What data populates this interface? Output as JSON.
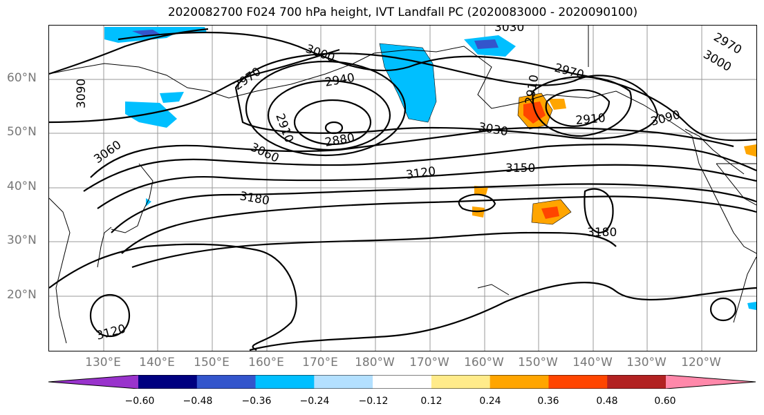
{
  "title": "2020082700 F024 700 hPa height, IVT Landfall PC (2020083000 - 2020090100)",
  "lat_labels": [
    "60°N",
    "50°N",
    "40°N",
    "30°N",
    "20°N"
  ],
  "lon_labels": [
    "130°E",
    "140°E",
    "150°E",
    "160°E",
    "170°E",
    "180°W",
    "170°W",
    "160°W",
    "150°W",
    "140°W",
    "130°W",
    "120°W"
  ],
  "contour_labels": [
    {
      "text": "3030"
    },
    {
      "text": "3000"
    },
    {
      "text": "2970"
    },
    {
      "text": "2940"
    },
    {
      "text": "2910"
    },
    {
      "text": "2880"
    },
    {
      "text": "3060"
    },
    {
      "text": "3090"
    },
    {
      "text": "3120"
    },
    {
      "text": "3150"
    },
    {
      "text": "3180"
    },
    {
      "text": "3180"
    },
    {
      "text": "3030"
    },
    {
      "text": "2970"
    },
    {
      "text": "2910"
    },
    {
      "text": "2910"
    },
    {
      "text": "3000"
    },
    {
      "text": "2970"
    },
    {
      "text": "3090"
    },
    {
      "text": "3060"
    },
    {
      "text": "3120"
    },
    {
      "text": "2970"
    }
  ],
  "colorbar": {
    "colors": [
      "#9933cc",
      "#000080",
      "#3355cc",
      "#00bfff",
      "#b3e0ff",
      "#ffffff",
      "#ffeb8a",
      "#ffa500",
      "#ff4500",
      "#b22222",
      "#ff88aa"
    ],
    "ticks": [
      "−0.60",
      "−0.48",
      "−0.36",
      "−0.24",
      "−0.12",
      "0.12",
      "0.24",
      "0.36",
      "0.48",
      "0.60"
    ]
  },
  "colors": {
    "land_coast": "#000000",
    "grid": "#999999",
    "contour": "#000000"
  }
}
